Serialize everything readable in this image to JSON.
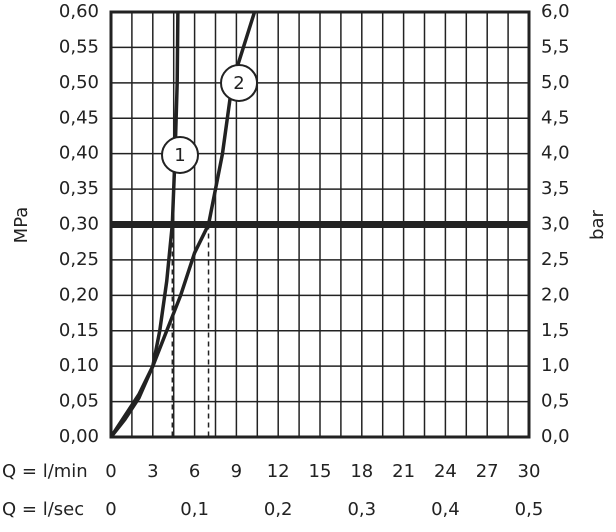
{
  "chart_data": {
    "type": "line",
    "y_label": "MPa",
    "y2_label": "bar",
    "x_label": "Q = l/min",
    "x2_label": "Q = l/sec",
    "xlim": [
      0,
      30
    ],
    "xticks": [
      0,
      3,
      6,
      9,
      12,
      15,
      18,
      21,
      24,
      27,
      30
    ],
    "xgrid": [
      1.5,
      4.5,
      7.5,
      10.5,
      13.5,
      16.5,
      19.5,
      22.5,
      25.5,
      28.5
    ],
    "x2lim": [
      0,
      0.5
    ],
    "x2ticks": [
      0,
      {
        "value": 0.1,
        "label": "0,1"
      },
      {
        "value": 0.2,
        "label": "0,2"
      },
      {
        "value": 0.3,
        "label": "0,3"
      },
      {
        "value": 0.4,
        "label": "0,4"
      },
      {
        "value": 0.5,
        "label": "0,5"
      }
    ],
    "ylim": [
      0,
      0.6
    ],
    "yticks": [
      {
        "value": 0,
        "label": "0,00"
      },
      {
        "value": 0.05,
        "label": "0,05"
      },
      {
        "value": 0.1,
        "label": "0,10"
      },
      {
        "value": 0.15,
        "label": "0,15"
      },
      {
        "value": 0.2,
        "label": "0,20"
      },
      {
        "value": 0.25,
        "label": "0,25"
      },
      {
        "value": 0.3,
        "label": "0,30"
      },
      {
        "value": 0.35,
        "label": "0,35"
      },
      {
        "value": 0.4,
        "label": "0,40"
      },
      {
        "value": 0.45,
        "label": "0,45"
      },
      {
        "value": 0.5,
        "label": "0,50"
      },
      {
        "value": 0.55,
        "label": "0,55"
      },
      {
        "value": 0.6,
        "label": "0,60"
      }
    ],
    "y2lim": [
      0,
      6
    ],
    "y2ticks": [
      {
        "value": 0,
        "label": "0,0"
      },
      {
        "value": 0.5,
        "label": "0,5"
      },
      {
        "value": 1,
        "label": "1,0"
      },
      {
        "value": 1.5,
        "label": "1,5"
      },
      {
        "value": 2,
        "label": "2,0"
      },
      {
        "value": 2.5,
        "label": "2,5"
      },
      {
        "value": 3,
        "label": "3,0"
      },
      {
        "value": 3.5,
        "label": "3,5"
      },
      {
        "value": 4,
        "label": "4,0"
      },
      {
        "value": 4.5,
        "label": "4,5"
      },
      {
        "value": 5,
        "label": "5,0"
      },
      {
        "value": 5.5,
        "label": "5,5"
      },
      {
        "value": 6,
        "label": "6,0"
      }
    ],
    "grid": true,
    "reference_line": 0.3,
    "drop_lines": [
      {
        "x": 4.4,
        "y": 0.3
      },
      {
        "x": 7,
        "y": 0.3
      }
    ],
    "color": "#222222",
    "series": [
      {
        "name": "1",
        "x": [
          0,
          1,
          2,
          3,
          3.5,
          4,
          4.4,
          4.6,
          4.75,
          4.8
        ],
        "values": [
          0,
          0.03,
          0.06,
          0.1,
          0.15,
          0.22,
          0.3,
          0.4,
          0.5,
          0.6
        ]
      },
      {
        "name": "2",
        "x": [
          0,
          1,
          2,
          3,
          4,
          5,
          6,
          7,
          8,
          8.7,
          10.3
        ],
        "values": [
          0,
          0.025,
          0.055,
          0.1,
          0.15,
          0.2,
          0.26,
          0.3,
          0.4,
          0.5,
          0.6
        ]
      }
    ]
  }
}
